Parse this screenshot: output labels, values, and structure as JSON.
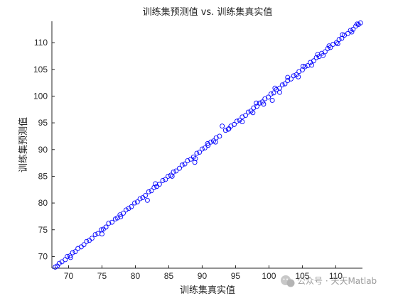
{
  "chart_data": {
    "type": "scatter",
    "title": "训练集预测值 vs. 训练集真实值",
    "xlabel": "训练集真实值",
    "ylabel": "训练集预测值",
    "xlim": [
      67.5,
      114
    ],
    "ylim": [
      67.8,
      114
    ],
    "xticks": [
      70,
      75,
      80,
      85,
      90,
      95,
      100,
      105,
      110
    ],
    "yticks": [
      70,
      75,
      80,
      85,
      90,
      95,
      100,
      105,
      110
    ],
    "grid": false,
    "marker": "open-circle",
    "marker_color": "#0000ff",
    "series": [
      {
        "name": "",
        "points": [
          [
            68,
            68
          ],
          [
            68.3,
            68.2
          ],
          [
            68.6,
            68.7
          ],
          [
            69,
            69
          ],
          [
            69.5,
            69.4
          ],
          [
            69.8,
            70
          ],
          [
            70.2,
            70.1
          ],
          [
            70.6,
            70.7
          ],
          [
            71,
            70.9
          ],
          [
            71.4,
            71.5
          ],
          [
            71.9,
            71.8
          ],
          [
            72.3,
            72.2
          ],
          [
            72.7,
            72.8
          ],
          [
            73.1,
            73
          ],
          [
            73.5,
            73.4
          ],
          [
            74,
            74.1
          ],
          [
            74.4,
            74.3
          ],
          [
            74.9,
            75
          ],
          [
            75.2,
            75.1
          ],
          [
            75.6,
            75.5
          ],
          [
            76,
            76.2
          ],
          [
            76.5,
            76.4
          ],
          [
            77,
            77
          ],
          [
            77.3,
            77.2
          ],
          [
            77.7,
            77.8
          ],
          [
            78.2,
            78.1
          ],
          [
            78.6,
            78.7
          ],
          [
            79,
            79
          ],
          [
            79.4,
            79.3
          ],
          [
            79.9,
            80
          ],
          [
            80.3,
            80.2
          ],
          [
            80.7,
            80.8
          ],
          [
            81.1,
            81
          ],
          [
            81.5,
            81.4
          ],
          [
            82,
            82.1
          ],
          [
            82.4,
            82.3
          ],
          [
            82.8,
            82.9
          ],
          [
            83.2,
            83.1
          ],
          [
            83.6,
            83.5
          ],
          [
            84.1,
            84.2
          ],
          [
            84.5,
            84.4
          ],
          [
            84.9,
            85
          ],
          [
            85.3,
            85.2
          ],
          [
            85.7,
            85.8
          ],
          [
            86.1,
            86
          ],
          [
            86.6,
            86.5
          ],
          [
            87,
            87.1
          ],
          [
            87.4,
            87.3
          ],
          [
            87.8,
            87.9
          ],
          [
            88.3,
            88.2
          ],
          [
            88.7,
            88.6
          ],
          [
            89.2,
            89.3
          ],
          [
            89.6,
            89.5
          ],
          [
            90,
            90.1
          ],
          [
            90.4,
            90.3
          ],
          [
            90.9,
            90.8
          ],
          [
            91.3,
            91.4
          ],
          [
            91.7,
            91.6
          ],
          [
            92.1,
            92.2
          ],
          [
            92.6,
            92.5
          ],
          [
            93.5,
            93.6
          ],
          [
            93.9,
            93.8
          ],
          [
            94.3,
            94.4
          ],
          [
            94.8,
            94.7
          ],
          [
            95.2,
            95.3
          ],
          [
            95.6,
            95.5
          ],
          [
            96,
            96.1
          ],
          [
            96.5,
            96.4
          ],
          [
            96.9,
            97
          ],
          [
            97.3,
            97.2
          ],
          [
            97.7,
            97.8
          ],
          [
            98.2,
            98.1
          ],
          [
            98.6,
            98.7
          ],
          [
            99,
            98.9
          ],
          [
            99.4,
            99.5
          ],
          [
            99.9,
            99.8
          ],
          [
            100.3,
            100.4
          ],
          [
            100.7,
            100.6
          ],
          [
            101.1,
            101.2
          ],
          [
            101.6,
            101.5
          ],
          [
            102,
            102.1
          ],
          [
            102.4,
            102.3
          ],
          [
            102.8,
            102.9
          ],
          [
            103.3,
            103.2
          ],
          [
            103.7,
            103.8
          ],
          [
            104.1,
            104
          ],
          [
            104.5,
            104.6
          ],
          [
            105,
            104.9
          ],
          [
            105.4,
            105.5
          ],
          [
            105.8,
            105.7
          ],
          [
            106.2,
            106.3
          ],
          [
            106.7,
            106.6
          ],
          [
            107.1,
            107.2
          ],
          [
            107.5,
            107.4
          ],
          [
            107.9,
            108
          ],
          [
            108.4,
            108.3
          ],
          [
            108.8,
            108.9
          ],
          [
            109.2,
            109.1
          ],
          [
            109.6,
            109.7
          ],
          [
            110.1,
            110
          ],
          [
            110.5,
            110.6
          ],
          [
            110.9,
            110.8
          ],
          [
            111.3,
            111.4
          ],
          [
            111.8,
            111.7
          ],
          [
            112.2,
            112.3
          ],
          [
            112.6,
            112.5
          ],
          [
            113,
            113.1
          ],
          [
            113.4,
            113.4
          ],
          [
            113.7,
            113.7
          ],
          [
            70.3,
            69.8
          ],
          [
            75,
            74.2
          ],
          [
            77.8,
            77.4
          ],
          [
            81.8,
            80.5
          ],
          [
            83,
            83.6
          ],
          [
            85.5,
            85
          ],
          [
            88.9,
            87.6
          ],
          [
            89,
            88.3
          ],
          [
            90.8,
            91.1
          ],
          [
            92,
            91.4
          ],
          [
            93,
            94.4
          ],
          [
            94,
            93.9
          ],
          [
            96,
            95.2
          ],
          [
            97.6,
            96.9
          ],
          [
            98.1,
            98.7
          ],
          [
            99.2,
            98.5
          ],
          [
            100.5,
            99.2
          ],
          [
            100.9,
            101.5
          ],
          [
            101.6,
            100.7
          ],
          [
            102.8,
            103.5
          ],
          [
            104.4,
            103.6
          ],
          [
            105.1,
            105.6
          ],
          [
            106.4,
            105.8
          ],
          [
            107.3,
            107.8
          ],
          [
            108.1,
            107.6
          ],
          [
            109,
            109.4
          ],
          [
            110.3,
            109.8
          ],
          [
            111,
            111.5
          ],
          [
            112.4,
            112
          ],
          [
            113.2,
            113.5
          ]
        ]
      }
    ]
  },
  "watermark": {
    "icon": "wechat-icon",
    "text": "公众号 · 天天Matlab"
  }
}
